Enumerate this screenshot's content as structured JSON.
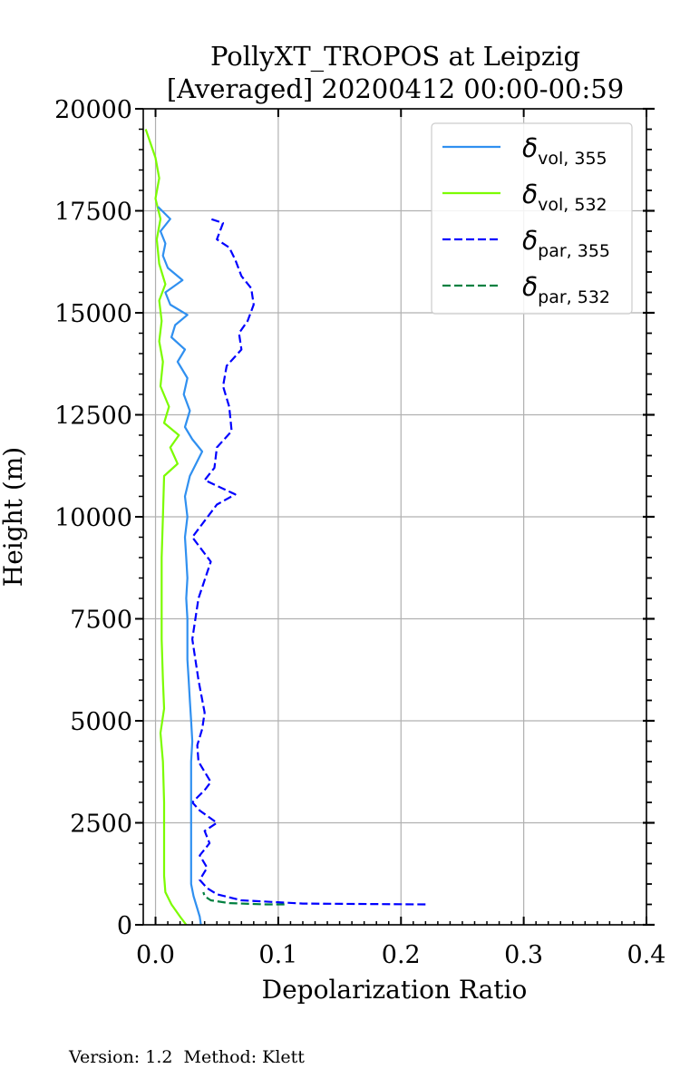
{
  "chart_data": {
    "type": "line",
    "title_line1": "PollyXT_TROPOS at Leipzig",
    "title_line2": "[Averaged] 20200412 00:00-00:59",
    "xlabel": "Depolarization Ratio",
    "ylabel": "Height (m)",
    "xlim": [
      -0.01,
      0.4
    ],
    "ylim": [
      0,
      20000
    ],
    "xticks": [
      "0.0",
      "0.1",
      "0.2",
      "0.3",
      "0.4"
    ],
    "yticks": [
      "0",
      "2500",
      "5000",
      "7500",
      "10000",
      "12500",
      "15000",
      "17500",
      "20000"
    ],
    "grid": true,
    "legend_position": "top-right",
    "series": [
      {
        "name": "δ_vol,355",
        "legend_main": "δ",
        "legend_sub": "vol, 355",
        "color": "#3090f0",
        "dash": "solid",
        "points": [
          [
            0.037,
            0
          ],
          [
            0.036,
            200
          ],
          [
            0.034,
            400
          ],
          [
            0.031,
            700
          ],
          [
            0.029,
            1000
          ],
          [
            0.029,
            1500
          ],
          [
            0.029,
            2000
          ],
          [
            0.029,
            2500
          ],
          [
            0.029,
            3000
          ],
          [
            0.029,
            3500
          ],
          [
            0.029,
            4000
          ],
          [
            0.03,
            4500
          ],
          [
            0.029,
            5000
          ],
          [
            0.028,
            5500
          ],
          [
            0.027,
            6000
          ],
          [
            0.026,
            6500
          ],
          [
            0.026,
            7000
          ],
          [
            0.026,
            7500
          ],
          [
            0.025,
            8000
          ],
          [
            0.026,
            8500
          ],
          [
            0.025,
            9000
          ],
          [
            0.024,
            9500
          ],
          [
            0.026,
            10000
          ],
          [
            0.024,
            10500
          ],
          [
            0.028,
            11000
          ],
          [
            0.038,
            11600
          ],
          [
            0.03,
            11900
          ],
          [
            0.024,
            12200
          ],
          [
            0.028,
            12600
          ],
          [
            0.023,
            13000
          ],
          [
            0.026,
            13400
          ],
          [
            0.018,
            13800
          ],
          [
            0.024,
            14100
          ],
          [
            0.013,
            14400
          ],
          [
            0.016,
            14700
          ],
          [
            0.026,
            14950
          ],
          [
            0.012,
            15200
          ],
          [
            0.008,
            15500
          ],
          [
            0.022,
            15800
          ],
          [
            0.01,
            16100
          ],
          [
            0.006,
            16400
          ],
          [
            0.008,
            16700
          ],
          [
            0.004,
            17000
          ],
          [
            0.012,
            17300
          ],
          [
            0.002,
            17600
          ]
        ]
      },
      {
        "name": "δ_vol,532",
        "legend_main": "δ",
        "legend_sub": "vol, 532",
        "color": "#7cfc00",
        "dash": "solid",
        "points": [
          [
            0.025,
            0
          ],
          [
            0.02,
            200
          ],
          [
            0.013,
            500
          ],
          [
            0.008,
            800
          ],
          [
            0.007,
            1200
          ],
          [
            0.007,
            2000
          ],
          [
            0.007,
            3000
          ],
          [
            0.006,
            4000
          ],
          [
            0.004,
            4700
          ],
          [
            0.007,
            5300
          ],
          [
            0.006,
            6000
          ],
          [
            0.005,
            7000
          ],
          [
            0.005,
            8000
          ],
          [
            0.005,
            9000
          ],
          [
            0.006,
            10000
          ],
          [
            0.007,
            11000
          ],
          [
            0.018,
            11300
          ],
          [
            0.012,
            11700
          ],
          [
            0.019,
            12000
          ],
          [
            0.007,
            12300
          ],
          [
            0.011,
            12700
          ],
          [
            0.004,
            13200
          ],
          [
            0.006,
            13800
          ],
          [
            0.003,
            14300
          ],
          [
            0.005,
            14800
          ],
          [
            0.003,
            15300
          ],
          [
            0.008,
            15700
          ],
          [
            0.003,
            16200
          ],
          [
            0.001,
            16800
          ],
          [
            0.004,
            17300
          ],
          [
            0.0,
            17800
          ],
          [
            0.003,
            18300
          ],
          [
            0.0,
            18800
          ],
          [
            -0.008,
            19500
          ]
        ]
      },
      {
        "name": "δ_par,355",
        "legend_main": "δ",
        "legend_sub": "par, 355",
        "color": "#0000ff",
        "dash": "dashed",
        "points": [
          [
            0.22,
            500
          ],
          [
            0.12,
            520
          ],
          [
            0.07,
            600
          ],
          [
            0.05,
            750
          ],
          [
            0.042,
            900
          ],
          [
            0.036,
            1100
          ],
          [
            0.042,
            1400
          ],
          [
            0.036,
            1700
          ],
          [
            0.044,
            2000
          ],
          [
            0.04,
            2300
          ],
          [
            0.05,
            2500
          ],
          [
            0.036,
            2800
          ],
          [
            0.03,
            3000
          ],
          [
            0.04,
            3300
          ],
          [
            0.045,
            3500
          ],
          [
            0.035,
            4000
          ],
          [
            0.034,
            4400
          ],
          [
            0.038,
            4800
          ],
          [
            0.04,
            5200
          ],
          [
            0.035,
            6000
          ],
          [
            0.03,
            7000
          ],
          [
            0.035,
            8000
          ],
          [
            0.045,
            8900
          ],
          [
            0.03,
            9500
          ],
          [
            0.05,
            10300
          ],
          [
            0.065,
            10550
          ],
          [
            0.04,
            10900
          ],
          [
            0.048,
            11200
          ],
          [
            0.05,
            11700
          ],
          [
            0.062,
            12100
          ],
          [
            0.06,
            12700
          ],
          [
            0.055,
            13200
          ],
          [
            0.058,
            13700
          ],
          [
            0.07,
            14100
          ],
          [
            0.068,
            14500
          ],
          [
            0.075,
            14800
          ],
          [
            0.08,
            15200
          ],
          [
            0.078,
            15600
          ],
          [
            0.07,
            15900
          ],
          [
            0.065,
            16300
          ],
          [
            0.06,
            16600
          ],
          [
            0.05,
            16800
          ],
          [
            0.055,
            17200
          ],
          [
            0.045,
            17300
          ]
        ]
      },
      {
        "name": "δ_par,532",
        "legend_main": "δ",
        "legend_sub": "par, 532",
        "color": "#008040",
        "dash": "dashed",
        "points": [
          [
            0.105,
            500
          ],
          [
            0.09,
            500
          ],
          [
            0.06,
            530
          ],
          [
            0.045,
            600
          ],
          [
            0.04,
            700
          ],
          [
            0.039,
            800
          ]
        ]
      }
    ]
  },
  "footer": "Version: 1.2  Method: Klett"
}
